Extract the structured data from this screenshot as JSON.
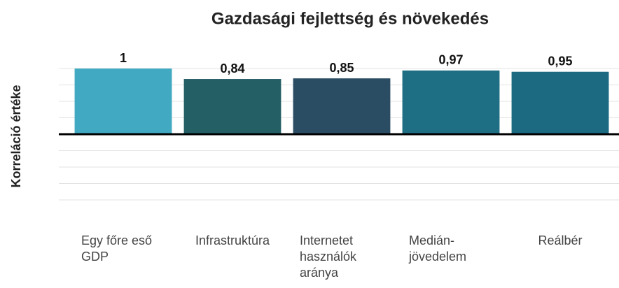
{
  "chart_data": {
    "type": "bar",
    "title": "Gazdasági fejlettség és növekedés",
    "y_label": "Korreláció értéke",
    "categories": [
      "Egy főre eső GDP",
      "Infrastruktúra",
      "Internetet használók aránya",
      "Medián-jövedelem",
      "Reálbér"
    ],
    "values": [
      1,
      0.84,
      0.85,
      0.97,
      0.95
    ],
    "value_labels": [
      "1",
      "0,84",
      "0,85",
      "0,97",
      "0,95"
    ],
    "colors": [
      "#41a9c1",
      "#245f66",
      "#2b4d63",
      "#1e6f84",
      "#1c6a82"
    ],
    "ylim": [
      -1,
      1
    ],
    "yticks": [
      -1,
      -0.75,
      -0.5,
      -0.25,
      0,
      0.25,
      0.5,
      0.75,
      1
    ],
    "grid": true
  }
}
